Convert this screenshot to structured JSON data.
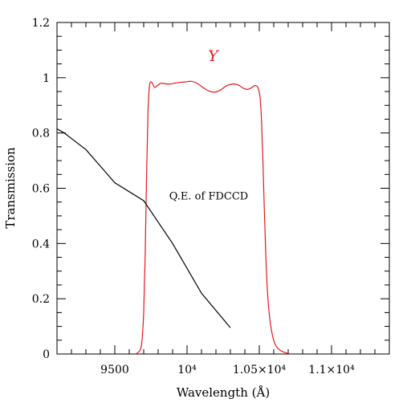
{
  "chart_data": {
    "type": "line",
    "xlabel": "Wavelength (Å)",
    "ylabel": "Transmission",
    "xlim": [
      9100,
      11400
    ],
    "ylim": [
      0,
      1.2
    ],
    "x_ticks": [
      {
        "value": 9500,
        "label": "9500"
      },
      {
        "value": 10000,
        "label": "10⁴"
      },
      {
        "value": 10500,
        "label": "1.05×10⁴"
      },
      {
        "value": 11000,
        "label": "1.1×10⁴"
      }
    ],
    "y_ticks": [
      {
        "value": 0,
        "label": "0"
      },
      {
        "value": 0.2,
        "label": "0.2"
      },
      {
        "value": 0.4,
        "label": "0.4"
      },
      {
        "value": 0.6,
        "label": "0.6"
      },
      {
        "value": 0.8,
        "label": "0.8"
      },
      {
        "value": 1.0,
        "label": "1"
      },
      {
        "value": 1.2,
        "label": "1.2"
      }
    ],
    "x_minor_step": 100,
    "y_minor_step": 0.05,
    "series": [
      {
        "name": "Y",
        "color": "#e41a1c",
        "points": [
          [
            9640,
            0.0
          ],
          [
            9660,
            0.005
          ],
          [
            9680,
            0.02
          ],
          [
            9690,
            0.06
          ],
          [
            9700,
            0.15
          ],
          [
            9710,
            0.35
          ],
          [
            9720,
            0.65
          ],
          [
            9730,
            0.88
          ],
          [
            9740,
            0.97
          ],
          [
            9750,
            0.985
          ],
          [
            9760,
            0.98
          ],
          [
            9775,
            0.965
          ],
          [
            9790,
            0.97
          ],
          [
            9820,
            0.98
          ],
          [
            9850,
            0.978
          ],
          [
            9880,
            0.977
          ],
          [
            9910,
            0.98
          ],
          [
            9950,
            0.983
          ],
          [
            9990,
            0.985
          ],
          [
            10030,
            0.987
          ],
          [
            10070,
            0.98
          ],
          [
            10110,
            0.965
          ],
          [
            10150,
            0.952
          ],
          [
            10190,
            0.948
          ],
          [
            10230,
            0.955
          ],
          [
            10270,
            0.97
          ],
          [
            10310,
            0.977
          ],
          [
            10350,
            0.975
          ],
          [
            10390,
            0.962
          ],
          [
            10420,
            0.958
          ],
          [
            10450,
            0.965
          ],
          [
            10470,
            0.972
          ],
          [
            10490,
            0.965
          ],
          [
            10505,
            0.93
          ],
          [
            10515,
            0.85
          ],
          [
            10525,
            0.7
          ],
          [
            10535,
            0.52
          ],
          [
            10545,
            0.36
          ],
          [
            10555,
            0.24
          ],
          [
            10570,
            0.14
          ],
          [
            10590,
            0.07
          ],
          [
            10610,
            0.035
          ],
          [
            10640,
            0.015
          ],
          [
            10680,
            0.005
          ],
          [
            10720,
            0.0
          ]
        ]
      },
      {
        "name": "Q.E. of FDCCD",
        "color": "#000000",
        "points": [
          [
            9100,
            0.815
          ],
          [
            9150,
            0.8
          ],
          [
            9200,
            0.78
          ],
          [
            9300,
            0.74
          ],
          [
            9400,
            0.68
          ],
          [
            9500,
            0.62
          ],
          [
            9700,
            0.555
          ],
          [
            9900,
            0.4
          ],
          [
            10100,
            0.22
          ],
          [
            10300,
            0.095
          ]
        ]
      }
    ],
    "annotations": [
      {
        "text": "Y",
        "x": 10180,
        "y": 1.06,
        "color": "#e41a1c"
      },
      {
        "text": "Q.E. of FDCCD",
        "x": 10150,
        "y": 0.56,
        "color": "#000000"
      }
    ],
    "grid": false
  }
}
